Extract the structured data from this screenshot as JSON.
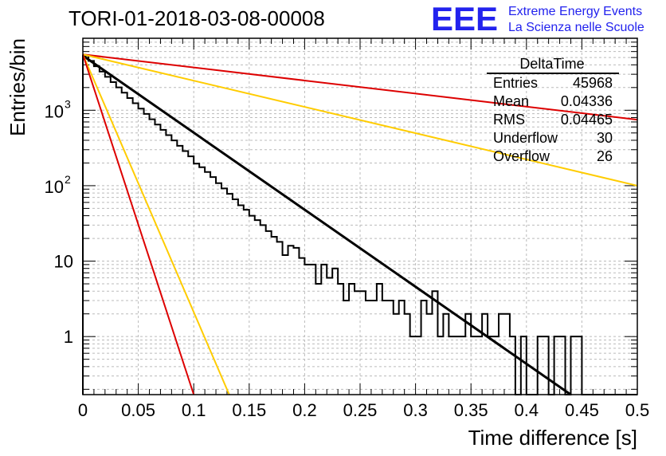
{
  "title": "TORI-01-2018-03-08-00008",
  "logo": {
    "mark": "EEE",
    "line1": "Extreme Energy Events",
    "line2": "La Scienza nelle Scuole",
    "color": "#2222ee"
  },
  "stats": {
    "name": "DeltaTime",
    "rows": [
      {
        "label": "Entries",
        "value": "45968"
      },
      {
        "label": "Mean",
        "value": "0.04336"
      },
      {
        "label": "RMS",
        "value": "0.04465"
      },
      {
        "label": "Underflow",
        "value": "30"
      },
      {
        "label": "Overflow",
        "value": "26"
      }
    ]
  },
  "chart_data": {
    "type": "histogram",
    "xlabel": "Time difference [s]",
    "ylabel": "Entries/bin",
    "xlim": [
      0,
      0.5
    ],
    "ylim": [
      0.17,
      9000
    ],
    "yscale": "log",
    "grid": true,
    "bin_width": 0.005,
    "x_ticks": [
      "0",
      "0.05",
      "0.1",
      "0.15",
      "0.2",
      "0.25",
      "0.3",
      "0.35",
      "0.4",
      "0.45",
      "0.5"
    ],
    "y_ticks": [
      {
        "value": 1,
        "label": "1"
      },
      {
        "value": 10,
        "label": "10"
      },
      {
        "value": 100,
        "label": "10",
        "exp": "2"
      },
      {
        "value": 1000,
        "label": "10",
        "exp": "3"
      }
    ],
    "histogram_counts": [
      5300,
      4510,
      3830,
      3260,
      2770,
      2360,
      2010,
      1710,
      1450,
      1240,
      1050,
      895,
      760,
      647,
      550,
      468,
      398,
      338,
      288,
      245,
      196,
      176,
      152,
      130,
      108,
      92,
      78,
      66,
      55,
      48,
      40,
      35,
      30,
      25,
      21,
      18,
      12,
      16,
      15,
      11,
      9,
      9,
      5,
      9,
      6,
      8,
      5,
      3,
      5,
      4,
      4,
      3,
      3,
      5,
      3,
      3,
      2,
      3,
      2,
      1,
      1,
      3,
      2,
      4,
      1,
      2,
      1,
      1,
      1,
      2,
      1,
      1,
      2,
      1,
      1,
      2,
      2,
      1,
      0,
      1,
      0,
      0,
      1,
      1,
      0,
      1,
      1,
      0,
      1,
      1,
      0,
      0,
      0,
      0,
      0,
      0,
      0,
      0,
      0,
      0
    ],
    "series": [
      {
        "name": "",
        "color": "#000000",
        "x": [
          0,
          0.44
        ],
        "y": [
          5300,
          0.17
        ]
      },
      {
        "name": "",
        "color": "#dd0000",
        "x": [
          0,
          0.5
        ],
        "y": [
          5500,
          750
        ]
      },
      {
        "name": "",
        "color": "#ffcc00",
        "x": [
          0,
          0.5
        ],
        "y": [
          5500,
          100
        ]
      },
      {
        "name": "",
        "color": "#ffcc00",
        "x": [
          0,
          0.132
        ],
        "y": [
          5500,
          0.17
        ]
      },
      {
        "name": "",
        "color": "#dd0000",
        "x": [
          0,
          0.1
        ],
        "y": [
          5500,
          0.17
        ]
      }
    ]
  }
}
